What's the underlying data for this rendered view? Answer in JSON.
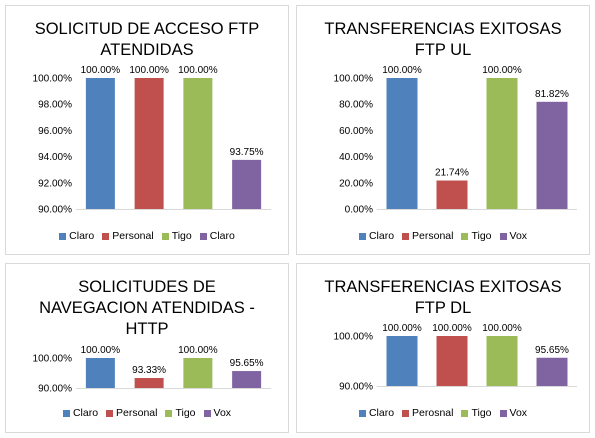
{
  "chart_data": [
    {
      "type": "bar",
      "title": "SOLICITUD DE ACCESO FTP ATENDIDAS",
      "title_lines": [
        "SOLICITUD DE ACCESO FTP",
        "ATENDIDAS"
      ],
      "categories": [
        "Claro",
        "Personal",
        "Tigo",
        "Claro"
      ],
      "values": [
        100.0,
        100.0,
        100.0,
        93.75
      ],
      "data_labels": [
        "100.00%",
        "100.00%",
        "100.00%",
        "93.75%"
      ],
      "colors": [
        "#4f81bd",
        "#c0504d",
        "#9bbb59",
        "#8064a2"
      ],
      "ylim": [
        90,
        100
      ],
      "yticks": [
        "90.00%",
        "92.00%",
        "94.00%",
        "96.00%",
        "98.00%",
        "100.00%"
      ],
      "legend_position": "bottom",
      "grid": false
    },
    {
      "type": "bar",
      "title": "TRANSFERENCIAS EXITOSAS FTP UL",
      "title_lines": [
        "TRANSFERENCIAS EXITOSAS",
        "FTP UL"
      ],
      "categories": [
        "Claro",
        "Personal",
        "Tigo",
        "Vox"
      ],
      "values": [
        100.0,
        21.74,
        100.0,
        81.82
      ],
      "data_labels": [
        "100.00%",
        "21.74%",
        "100.00%",
        "81.82%"
      ],
      "colors": [
        "#4f81bd",
        "#c0504d",
        "#9bbb59",
        "#8064a2"
      ],
      "ylim": [
        0,
        100
      ],
      "yticks": [
        "0.00%",
        "20.00%",
        "40.00%",
        "60.00%",
        "80.00%",
        "100.00%"
      ],
      "legend_position": "bottom",
      "grid": false
    },
    {
      "type": "bar",
      "title": "SOLICITUDES DE NAVEGACION ATENDIDAS - HTTP",
      "title_lines": [
        "SOLICITUDES DE",
        "NAVEGACION ATENDIDAS -",
        "HTTP"
      ],
      "categories": [
        "Claro",
        "Personal",
        "Tigo",
        "Vox"
      ],
      "values": [
        100.0,
        93.33,
        100.0,
        95.65
      ],
      "data_labels": [
        "100.00%",
        "93.33%",
        "100.00%",
        "95.65%"
      ],
      "colors": [
        "#4f81bd",
        "#c0504d",
        "#9bbb59",
        "#8064a2"
      ],
      "ylim": [
        90,
        100
      ],
      "yticks": [
        "90.00%",
        "100.00%"
      ],
      "legend_position": "bottom",
      "grid": false
    },
    {
      "type": "bar",
      "title": "TRANSFERENCIAS EXITOSAS FTP DL",
      "title_lines": [
        "TRANSFERENCIAS EXITOSAS",
        "FTP DL"
      ],
      "categories": [
        "Claro",
        "Perosnal",
        "Tigo",
        "Vox"
      ],
      "values": [
        100.0,
        100.0,
        100.0,
        95.65
      ],
      "data_labels": [
        "100.00%",
        "100.00%",
        "100.00%",
        "95.65%"
      ],
      "colors": [
        "#4f81bd",
        "#c0504d",
        "#9bbb59",
        "#8064a2"
      ],
      "ylim": [
        90,
        100
      ],
      "yticks": [
        "90.00%",
        "100.00%"
      ],
      "legend_position": "bottom",
      "grid": false
    }
  ]
}
